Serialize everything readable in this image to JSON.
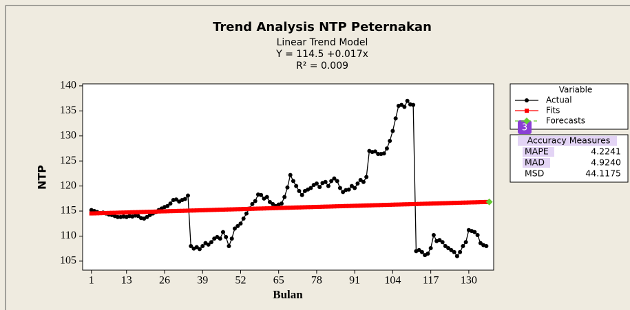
{
  "chart_data": {
    "type": "line",
    "title": "Trend Analysis NTP Peternakan",
    "subtitle": [
      "Linear Trend Model",
      "Y = 114.5 +0.017x",
      "R² = 0.009"
    ],
    "x_label": "Bulan",
    "y_label": "NTP",
    "x": [
      1,
      2,
      3,
      4,
      5,
      6,
      7,
      8,
      9,
      10,
      11,
      12,
      13,
      14,
      15,
      16,
      17,
      18,
      19,
      20,
      21,
      22,
      23,
      24,
      25,
      26,
      27,
      28,
      29,
      30,
      31,
      32,
      33,
      34,
      35,
      36,
      37,
      38,
      39,
      40,
      41,
      42,
      43,
      44,
      45,
      46,
      47,
      48,
      49,
      50,
      51,
      52,
      53,
      54,
      55,
      56,
      57,
      58,
      59,
      60,
      61,
      62,
      63,
      64,
      65,
      66,
      67,
      68,
      69,
      70,
      71,
      72,
      73,
      74,
      75,
      76,
      77,
      78,
      79,
      80,
      81,
      82,
      83,
      84,
      85,
      86,
      87,
      88,
      89,
      90,
      91,
      92,
      93,
      94,
      95,
      96,
      97,
      98,
      99,
      100,
      101,
      102,
      103,
      104,
      105,
      106,
      107,
      108,
      109,
      110,
      111,
      112,
      113,
      114,
      115,
      116,
      117,
      118,
      119,
      120,
      121,
      122,
      123,
      124,
      125,
      126,
      127,
      128,
      129,
      130,
      131,
      132,
      133,
      134,
      135,
      136
    ],
    "series": [
      {
        "name": "Actual",
        "color": "#000000",
        "marker": "circle",
        "line_style": "solid",
        "values": [
          115.2,
          115.0,
          114.8,
          114.6,
          114.7,
          114.5,
          114.3,
          114.2,
          114.0,
          113.8,
          113.8,
          113.9,
          113.8,
          114.0,
          113.9,
          114.1,
          114.0,
          113.6,
          113.5,
          113.8,
          114.2,
          114.5,
          114.8,
          115.2,
          115.5,
          115.8,
          116.0,
          116.5,
          117.2,
          117.3,
          116.9,
          117.2,
          117.4,
          118.1,
          108.0,
          107.5,
          107.8,
          107.4,
          108.0,
          108.6,
          108.3,
          108.8,
          109.5,
          109.8,
          109.5,
          110.8,
          109.8,
          108.0,
          109.5,
          111.5,
          112.0,
          112.5,
          113.5,
          114.5,
          115.5,
          116.4,
          117.0,
          118.3,
          118.2,
          117.5,
          117.8,
          116.8,
          116.4,
          116.0,
          116.3,
          116.5,
          117.8,
          119.7,
          122.2,
          121.0,
          120.0,
          119.0,
          118.2,
          119.0,
          119.3,
          119.6,
          120.2,
          120.5,
          119.8,
          120.6,
          120.8,
          120.0,
          121.0,
          121.5,
          121.0,
          119.6,
          118.8,
          119.2,
          119.3,
          120.0,
          119.6,
          120.5,
          121.2,
          120.8,
          121.8,
          127.0,
          126.8,
          126.9,
          126.4,
          126.4,
          126.5,
          127.5,
          129.0,
          131.0,
          133.5,
          136.0,
          136.2,
          135.8,
          137.0,
          136.3,
          136.2,
          107.0,
          107.2,
          106.8,
          106.2,
          106.5,
          107.6,
          110.2,
          109.0,
          109.2,
          108.8,
          108.0,
          107.6,
          107.2,
          106.8,
          106.0,
          106.8,
          108.0,
          108.8,
          111.2,
          111.0,
          110.8,
          110.2,
          108.6,
          108.2,
          108.0
        ]
      },
      {
        "name": "Fits",
        "color": "#ff0000",
        "marker": "square",
        "line_style": "solid",
        "values": [
          114.52,
          114.53,
          114.55,
          114.57,
          114.59,
          114.6,
          114.62,
          114.64,
          114.65,
          114.67,
          114.69,
          114.7,
          114.72,
          114.74,
          114.76,
          114.77,
          114.79,
          114.81,
          114.82,
          114.84,
          114.86,
          114.87,
          114.89,
          114.91,
          114.93,
          114.94,
          114.96,
          114.98,
          114.99,
          115.01,
          115.03,
          115.04,
          115.06,
          115.08,
          115.1,
          115.11,
          115.13,
          115.15,
          115.16,
          115.18,
          115.2,
          115.21,
          115.23,
          115.25,
          115.27,
          115.28,
          115.3,
          115.32,
          115.33,
          115.35,
          115.37,
          115.38,
          115.4,
          115.42,
          115.44,
          115.45,
          115.47,
          115.49,
          115.5,
          115.52,
          115.54,
          115.55,
          115.57,
          115.59,
          115.61,
          115.62,
          115.64,
          115.66,
          115.67,
          115.69,
          115.71,
          115.72,
          115.74,
          115.76,
          115.78,
          115.79,
          115.81,
          115.83,
          115.84,
          115.86,
          115.88,
          115.89,
          115.91,
          115.93,
          115.95,
          115.96,
          115.98,
          116.0,
          116.01,
          116.03,
          116.05,
          116.06,
          116.08,
          116.1,
          116.12,
          116.13,
          116.15,
          116.17,
          116.18,
          116.2,
          116.22,
          116.23,
          116.25,
          116.27,
          116.29,
          116.3,
          116.32,
          116.34,
          116.35,
          116.37,
          116.39,
          116.4,
          116.42,
          116.44,
          116.46,
          116.47,
          116.49,
          116.51,
          116.52,
          116.54,
          116.56,
          116.57,
          116.59,
          116.61,
          116.63,
          116.64,
          116.66,
          116.68,
          116.69,
          116.71,
          116.73,
          116.74,
          116.76,
          116.78,
          116.8,
          116.81
        ]
      },
      {
        "name": "Forecasts",
        "color": "#66cc33",
        "marker": "diamond",
        "line_style": "dashed",
        "x": [
          137
        ],
        "values": [
          116.83
        ]
      }
    ],
    "xlim": [
      -2,
      138.5
    ],
    "xticks": [
      1,
      13,
      26,
      39,
      52,
      65,
      78,
      91,
      104,
      117,
      130
    ],
    "ylim": [
      103.2,
      140.4
    ],
    "yticks": [
      105,
      110,
      115,
      120,
      125,
      130,
      135,
      140
    ],
    "legend_title": "Variable",
    "accuracy_measures": {
      "title": "Accuracy Measures",
      "rows": [
        [
          "MAPE",
          "4.2241"
        ],
        [
          "MAD",
          "4.9240"
        ],
        [
          "MSD",
          "44.1175"
        ]
      ]
    },
    "badge": "3"
  }
}
